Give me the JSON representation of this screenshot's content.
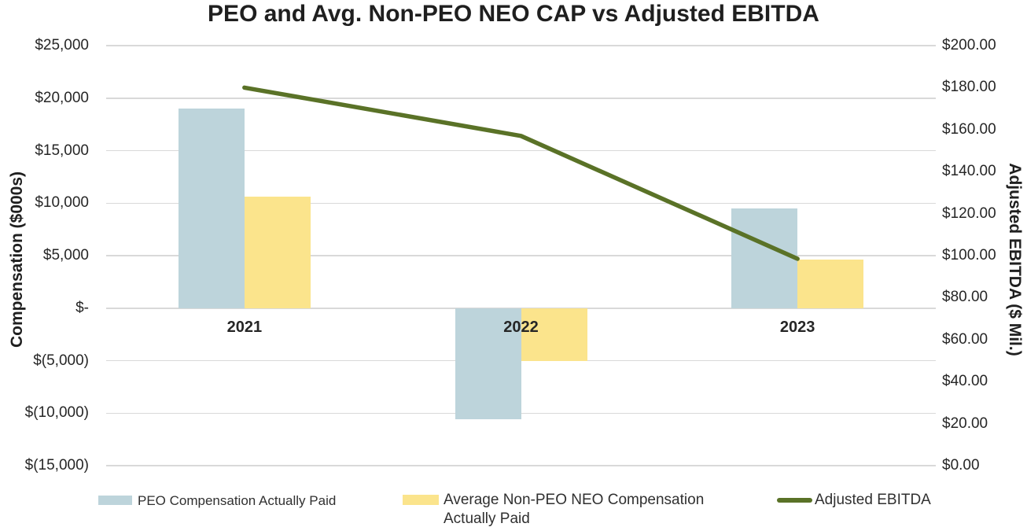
{
  "chart_data": {
    "type": "combo",
    "title": "PEO and Avg. Non-PEO NEO CAP vs Adjusted EBITDA",
    "categories": [
      "2021",
      "2022",
      "2023"
    ],
    "series": [
      {
        "name": "PEO Compensation Actually Paid",
        "type": "bar",
        "axis": "left",
        "color": "#BDD4DB",
        "values": [
          19000,
          -10600,
          9500
        ]
      },
      {
        "name": "Average Non-PEO NEO Compensation Actually Paid",
        "type": "bar",
        "axis": "left",
        "color": "#FBE48C",
        "values": [
          10600,
          -5000,
          4650
        ]
      },
      {
        "name": "Adjusted EBITDA",
        "type": "line",
        "axis": "right",
        "color": "#5A7227",
        "values": [
          180,
          157,
          98.5
        ]
      }
    ],
    "left_axis": {
      "label": "Compensation ($000s)",
      "min": -15000,
      "max": 25000,
      "step": 5000,
      "ticks": [
        "$25,000",
        "$20,000",
        "$15,000",
        "$10,000",
        "$5,000",
        "$-",
        "$(5,000)",
        "$(10,000)",
        "$(15,000)"
      ]
    },
    "right_axis": {
      "label": "Adjusted EBITDA ($ Mil.)",
      "min": 0,
      "max": 200,
      "step": 20,
      "ticks": [
        "$200.00",
        "$180.00",
        "$160.00",
        "$140.00",
        "$120.00",
        "$100.00",
        "$80.00",
        "$60.00",
        "$40.00",
        "$20.00",
        "$0.00"
      ]
    },
    "grid": true,
    "legend_position": "bottom",
    "gridline_color": "#D9D9D9",
    "background_color": "#FFFFFF"
  }
}
